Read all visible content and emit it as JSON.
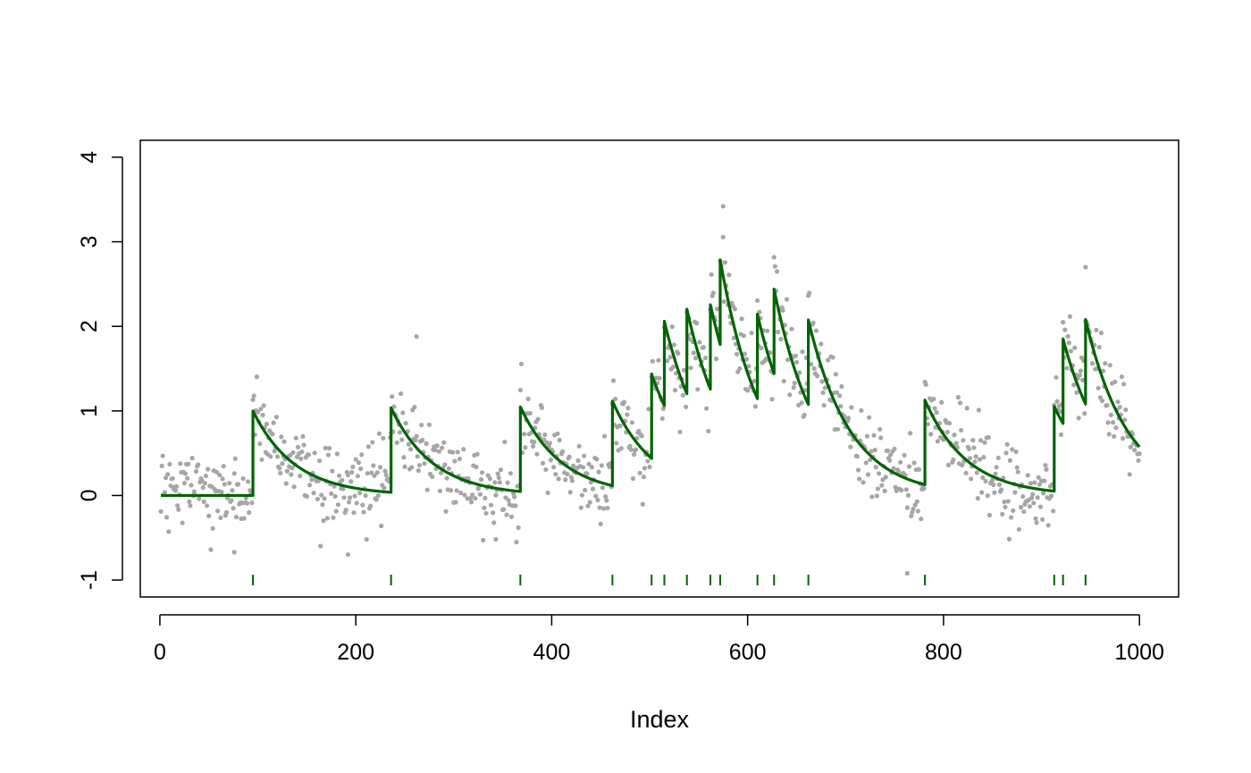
{
  "chart_data": {
    "type": "scatter",
    "title": "",
    "xlabel": "Index",
    "ylabel": "",
    "xlim": [
      -20,
      1040
    ],
    "ylim": [
      -1.2,
      4.2
    ],
    "x_ticks": [
      0,
      200,
      400,
      600,
      800,
      1000
    ],
    "y_ticks": [
      -1,
      0,
      1,
      2,
      3,
      4
    ],
    "x_tick_labels": [
      "0",
      "200",
      "400",
      "600",
      "800",
      "1000"
    ],
    "y_tick_labels": [
      "-1",
      "0",
      "1",
      "2",
      "3",
      "4"
    ],
    "grid": false,
    "legend": "none",
    "n_points": 1000,
    "series": [
      {
        "kind": "scatter",
        "color": "#a6a6a6",
        "description_points": "noisy observations around the fitted curve",
        "noise_sd": 0.22,
        "outliers": [
          {
            "x": 262,
            "y": 1.88
          },
          {
            "x": 575,
            "y": 3.42
          },
          {
            "x": 945,
            "y": 2.7
          },
          {
            "x": 192,
            "y": -0.7
          },
          {
            "x": 763,
            "y": -0.92
          },
          {
            "x": 76,
            "y": -0.67
          },
          {
            "x": 343,
            "y": -0.52
          }
        ]
      },
      {
        "kind": "line",
        "color": "#006400",
        "decay_rate": 0.0234,
        "jump_size": 1.0,
        "event_times": [
          95,
          236,
          368,
          462,
          502,
          515,
          538,
          562,
          572,
          610,
          627,
          662,
          781,
          913,
          922,
          945
        ],
        "fitted_peaks": [
          {
            "x": 95,
            "y": 1.0
          },
          {
            "x": 236,
            "y": 1.05
          },
          {
            "x": 368,
            "y": 1.06
          },
          {
            "x": 462,
            "y": 1.16
          },
          {
            "x": 502,
            "y": 1.52
          },
          {
            "x": 515,
            "y": 2.17
          },
          {
            "x": 538,
            "y": 2.37
          },
          {
            "x": 562,
            "y": 2.48
          },
          {
            "x": 572,
            "y": 3.03
          },
          {
            "x": 610,
            "y": 2.37
          },
          {
            "x": 627,
            "y": 2.68
          },
          {
            "x": 662,
            "y": 2.33
          },
          {
            "x": 781,
            "y": 1.21
          },
          {
            "x": 913,
            "y": 1.08
          },
          {
            "x": 922,
            "y": 1.9
          },
          {
            "x": 945,
            "y": 2.2
          }
        ],
        "end_value": {
          "x": 1000,
          "y": 0.76
        }
      },
      {
        "kind": "rug",
        "color": "#006400",
        "y": -1,
        "x": [
          95,
          236,
          368,
          462,
          502,
          515,
          538,
          562,
          572,
          610,
          627,
          662,
          781,
          913,
          922,
          945
        ]
      }
    ]
  }
}
